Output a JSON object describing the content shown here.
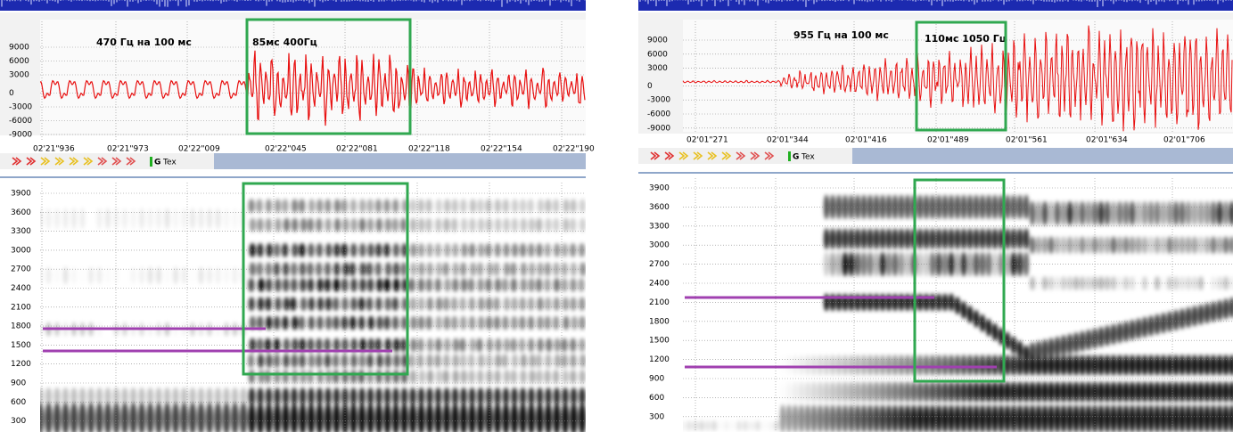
{
  "panels": [
    {
      "waveform": {
        "yticks": [
          9000,
          6000,
          3000,
          0,
          -3000,
          -6000,
          -9000
        ],
        "time_labels": [
          "02'21\"936",
          "02'21\"973",
          "02'22\"009",
          "02'22\"045",
          "02'22\"081",
          "02'22\"118",
          "02'22\"154",
          "02'22\"190"
        ],
        "annotations": [
          "470 Гц на 100 мс",
          "85мс 400Гц"
        ]
      },
      "toolbar": {
        "labels": [
          "G",
          "Tex"
        ]
      },
      "spectrogram": {
        "yticks": [
          3900,
          3600,
          3300,
          3000,
          2700,
          2400,
          2100,
          1800,
          1500,
          1200,
          900,
          600,
          300
        ]
      }
    },
    {
      "waveform": {
        "yticks": [
          9000,
          6000,
          3000,
          0,
          -3000,
          -6000,
          -9000
        ],
        "time_labels": [
          "02'01\"271",
          "02'01\"344",
          "02'01\"416",
          "02'01\"489",
          "02'01\"561",
          "02'01\"634",
          "02'01\"706"
        ],
        "annotations": [
          "955 Гц на 100 мс",
          "110мс 1050 Гц"
        ]
      },
      "toolbar": {
        "labels": [
          "G",
          "Tex"
        ]
      },
      "spectrogram": {
        "yticks": [
          3900,
          3600,
          3300,
          3000,
          2700,
          2400,
          2100,
          1800,
          1500,
          1200,
          900,
          600,
          300
        ]
      }
    }
  ]
}
